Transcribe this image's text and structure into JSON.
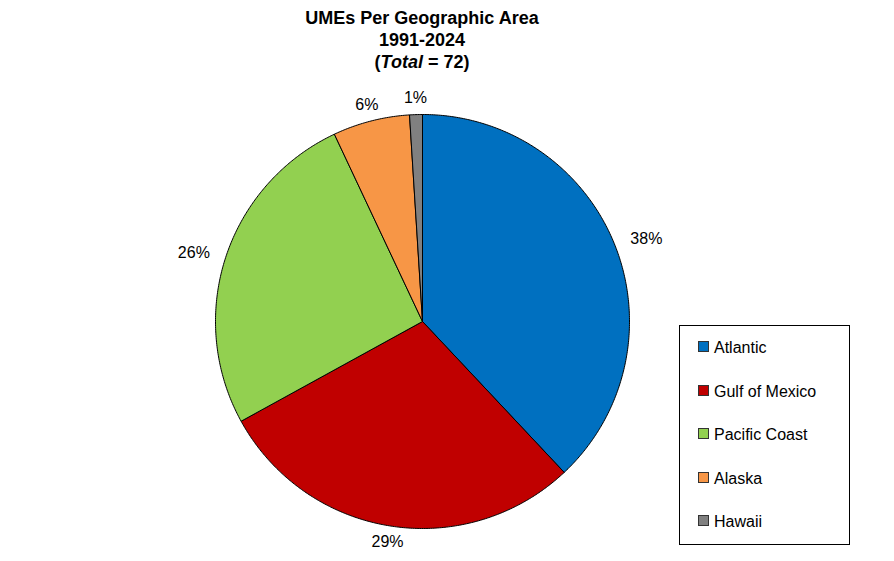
{
  "chart_data": {
    "type": "pie",
    "title": "UMEs Per Geographic Area",
    "subtitle": "1991-2024",
    "annotations": [
      "(Total = 72)"
    ],
    "categories": [
      "Atlantic",
      "Gulf of Mexico",
      "Pacific Coast",
      "Alaska",
      "Hawaii"
    ],
    "values": [
      38,
      29,
      26,
      6,
      1
    ],
    "value_labels": [
      "38%",
      "29%",
      "26%",
      "6%",
      "1%"
    ],
    "colors": [
      "#0070c0",
      "#c00000",
      "#92d050",
      "#f79646",
      "#808080"
    ],
    "data_labels": true,
    "legend": "right"
  }
}
